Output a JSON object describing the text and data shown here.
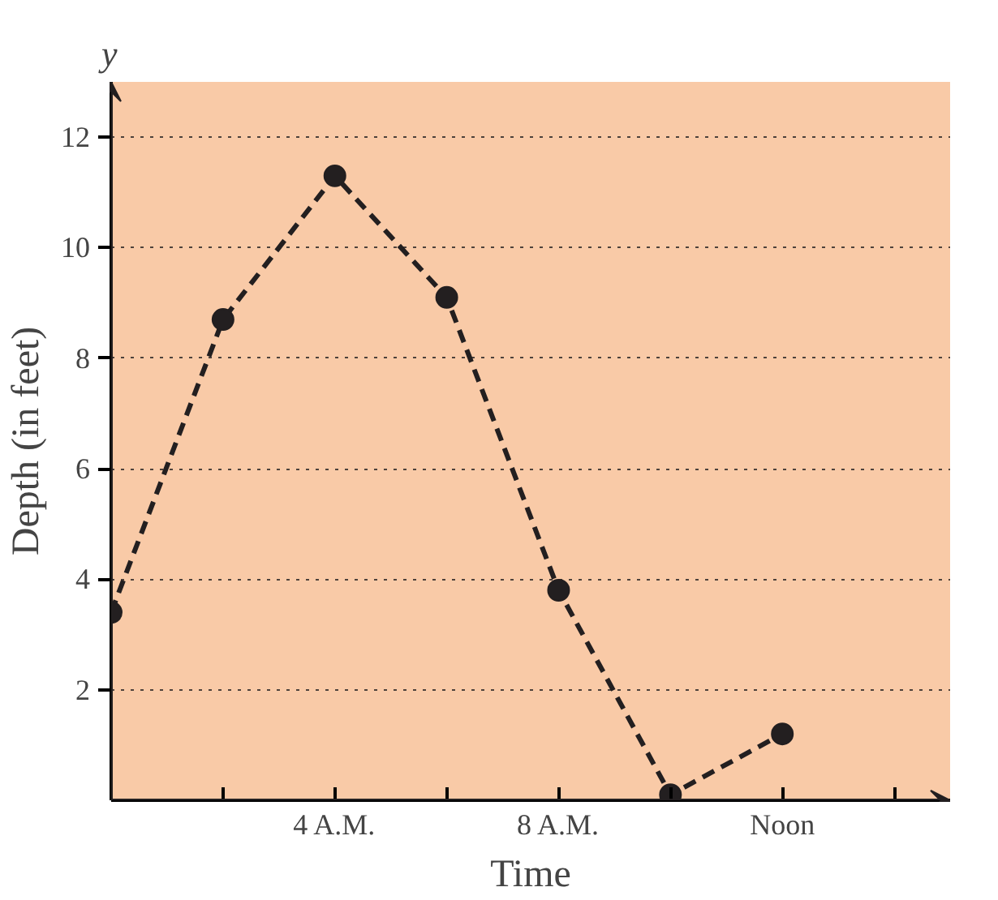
{
  "chart_data": {
    "type": "line",
    "xlabel": "Time",
    "ylabel": "Depth (in feet)",
    "annotations": [
      "y"
    ],
    "x": [
      0,
      2,
      4,
      6,
      8,
      10,
      12
    ],
    "series": [
      {
        "color": "#231f20",
        "values": [
          3.4,
          8.7,
          11.3,
          9.1,
          3.8,
          0.1,
          1.2
        ]
      }
    ],
    "xlim": [
      0,
      15
    ],
    "ylim": [
      0,
      13
    ],
    "xticks": [
      {
        "value": 2,
        "label": null
      },
      {
        "value": 4,
        "label": "4 A.M."
      },
      {
        "value": 6,
        "label": null
      },
      {
        "value": 8,
        "label": "8 A.M."
      },
      {
        "value": 10,
        "label": null
      },
      {
        "value": 12,
        "label": "Noon"
      },
      {
        "value": 14,
        "label": null
      }
    ],
    "yticks": [
      2,
      4,
      6,
      8,
      10,
      12
    ],
    "grid": "y",
    "marker": "circle",
    "line_style": "dashed"
  }
}
